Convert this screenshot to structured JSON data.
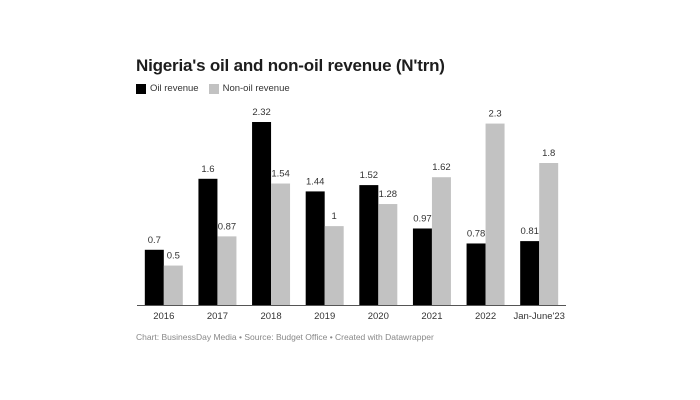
{
  "chart_data": {
    "type": "bar",
    "title": "Nigeria's oil and non-oil revenue (N'trn)",
    "categories": [
      "2016",
      "2017",
      "2018",
      "2019",
      "2020",
      "2021",
      "2022",
      "Jan-June'23"
    ],
    "series": [
      {
        "name": "Oil revenue",
        "color": "#000000",
        "values": [
          0.7,
          1.6,
          2.32,
          1.44,
          1.52,
          0.97,
          0.78,
          0.81
        ],
        "labels": [
          "0.7",
          "1.6",
          "2.32",
          "1.44",
          "1.52",
          "0.97",
          "0.78",
          "0.81"
        ]
      },
      {
        "name": "Non-oil revenue",
        "color": "#c2c2c2",
        "values": [
          0.5,
          0.87,
          1.54,
          1,
          1.28,
          1.62,
          2.3,
          1.8
        ],
        "labels": [
          "0.5",
          "0.87",
          "1.54",
          "1",
          "1.28",
          "1.62",
          "2.3",
          "1.8"
        ]
      }
    ],
    "ylim": [
      0,
      2.32
    ],
    "grid": false,
    "legend": "top-left"
  },
  "footer": "Chart: BusinessDay Media • Source: Budget Office • Created with Datawrapper"
}
